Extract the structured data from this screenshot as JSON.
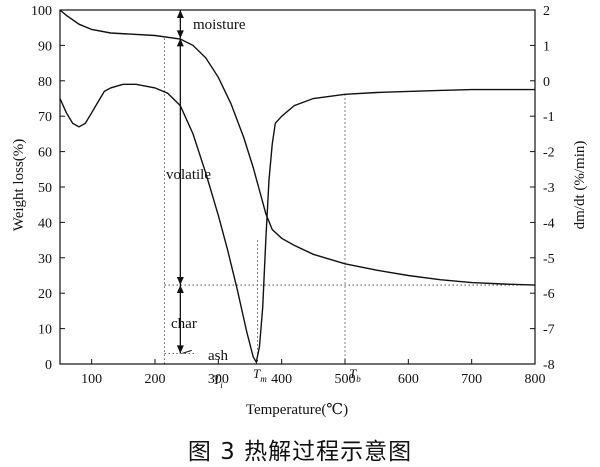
{
  "chart_data": {
    "type": "line",
    "xlabel": "Temperature(℃)",
    "ylabel_left": "Weight loss(%)",
    "ylabel_right": "dm/dt (%/min)",
    "xlim": [
      50,
      800
    ],
    "ylim_left": [
      0,
      100
    ],
    "ylim_right": [
      -8,
      2
    ],
    "xticks": [
      100,
      200,
      300,
      400,
      500,
      600,
      700,
      800
    ],
    "yticks_left": [
      0,
      10,
      20,
      30,
      40,
      50,
      60,
      70,
      80,
      90,
      100
    ],
    "yticks_right": [
      2,
      1,
      0,
      -1,
      -2,
      -3,
      -4,
      -5,
      -6,
      -7,
      -8
    ],
    "series": [
      {
        "axis": "left",
        "x": [
          50,
          60,
          80,
          100,
          130,
          160,
          200,
          240,
          260,
          280,
          300,
          320,
          340,
          355,
          365,
          375,
          385,
          400,
          420,
          450,
          500,
          550,
          600,
          650,
          700,
          750,
          800
        ],
        "y": [
          100,
          98.5,
          96,
          94.5,
          93.5,
          93.2,
          92.8,
          91.8,
          90,
          86.5,
          81,
          73.5,
          64,
          55.5,
          49,
          42.5,
          38,
          35.5,
          33.5,
          31,
          28.3,
          26.5,
          25,
          23.8,
          23,
          22.6,
          22.3
        ]
      },
      {
        "axis": "right",
        "x": [
          50,
          60,
          70,
          80,
          90,
          100,
          110,
          120,
          130,
          140,
          150,
          170,
          200,
          220,
          240,
          260,
          280,
          300,
          315,
          330,
          345,
          355,
          360,
          365,
          370,
          375,
          380,
          385,
          390,
          400,
          420,
          450,
          500,
          550,
          600,
          650,
          700,
          750,
          800
        ],
        "y": [
          -0.5,
          -0.9,
          -1.2,
          -1.3,
          -1.2,
          -0.9,
          -0.6,
          -0.3,
          -0.2,
          -0.15,
          -0.1,
          -0.1,
          -0.2,
          -0.35,
          -0.7,
          -1.5,
          -2.6,
          -3.8,
          -4.8,
          -5.9,
          -7.1,
          -7.8,
          -7.95,
          -7.5,
          -6.4,
          -4.5,
          -2.8,
          -1.8,
          -1.2,
          -1.0,
          -0.7,
          -0.5,
          -0.38,
          -0.33,
          -0.3,
          -0.27,
          -0.25,
          -0.25,
          -0.25
        ]
      }
    ],
    "annotations": {
      "moisture": "moisture",
      "volatile": "volatile",
      "char": "char",
      "ash": "ash",
      "ti": "T",
      "ti_sub": "i",
      "tm": "T",
      "tm_sub": "m",
      "tb": "T",
      "tb_sub": "b"
    },
    "markers_x": {
      "ti": 215,
      "tm": 362,
      "tb": 500
    },
    "level_marks": {
      "moisture_top": 100,
      "moisture_bottom": 92,
      "char_top": 22.3,
      "ash_bottom": 3
    }
  },
  "caption": "图 3    热解过程示意图"
}
